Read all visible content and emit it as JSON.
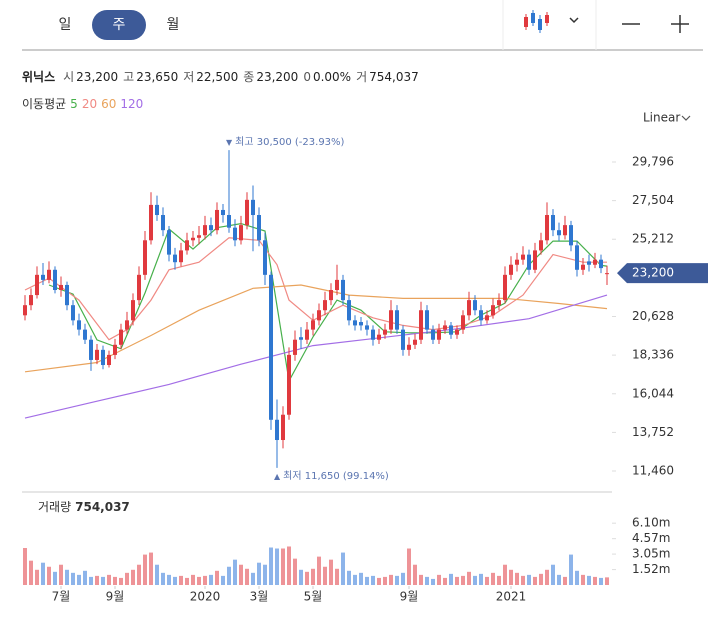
{
  "chart_data": {
    "type": "candlestick",
    "title": "위닉스",
    "tabs": [
      "일",
      "주",
      "월"
    ],
    "selected_tab": 1,
    "header": [
      {
        "label": "시",
        "value": "23,200"
      },
      {
        "label": "고",
        "value": "23,650"
      },
      {
        "label": "저",
        "value": "22,500"
      },
      {
        "label": "종",
        "value": "23,200"
      },
      {
        "label": "0",
        "value": "0.00%"
      },
      {
        "label": "거",
        "value": "754,037"
      }
    ],
    "ma_title": "이동평균",
    "scale_label": "Linear",
    "up_color": "#e0393e",
    "down_color": "#2f77d0",
    "ohlc": [
      [
        20700,
        21900,
        20400,
        21300
      ],
      [
        21300,
        22300,
        21000,
        21900
      ],
      [
        21900,
        23600,
        21700,
        23100
      ],
      [
        23100,
        23800,
        22500,
        22800
      ],
      [
        22800,
        23900,
        22600,
        23400
      ],
      [
        23400,
        23600,
        22000,
        22200
      ],
      [
        22200,
        23000,
        21800,
        22500
      ],
      [
        22500,
        22700,
        21000,
        21300
      ],
      [
        21300,
        21600,
        20100,
        20400
      ],
      [
        20400,
        20800,
        19500,
        19850
      ],
      [
        19850,
        20200,
        19000,
        19250
      ],
      [
        19250,
        19500,
        17400,
        18050
      ],
      [
        18050,
        19000,
        17800,
        18650
      ],
      [
        18650,
        18900,
        17500,
        17750
      ],
      [
        17750,
        18600,
        17600,
        18350
      ],
      [
        18350,
        19300,
        18100,
        18950
      ],
      [
        18950,
        20200,
        18700,
        19850
      ],
      [
        19850,
        20900,
        19600,
        20400
      ],
      [
        20400,
        22000,
        20100,
        21600
      ],
      [
        21600,
        23600,
        21300,
        23100
      ],
      [
        23100,
        25700,
        22800,
        25150
      ],
      [
        25150,
        28000,
        24900,
        27250
      ],
      [
        27250,
        27800,
        26300,
        26650
      ],
      [
        26650,
        27100,
        25400,
        25750
      ],
      [
        25750,
        26000,
        23900,
        24300
      ],
      [
        24300,
        24700,
        23400,
        23850
      ],
      [
        23850,
        25000,
        23600,
        24550
      ],
      [
        24550,
        25600,
        24300,
        25150
      ],
      [
        25150,
        25700,
        24800,
        25300
      ],
      [
        25300,
        26000,
        24900,
        25450
      ],
      [
        25450,
        26600,
        25200,
        26050
      ],
      [
        26050,
        26500,
        25400,
        25750
      ],
      [
        25750,
        27400,
        25500,
        26950
      ],
      [
        26950,
        27300,
        26200,
        26650
      ],
      [
        26650,
        30500,
        25600,
        25900
      ],
      [
        25900,
        26400,
        24800,
        25150
      ],
      [
        25150,
        26600,
        24900,
        26050
      ],
      [
        26050,
        28000,
        25800,
        27550
      ],
      [
        27550,
        28400,
        24500,
        26650
      ],
      [
        26650,
        27100,
        24800,
        25150
      ],
      [
        25150,
        25600,
        22500,
        23100
      ],
      [
        23100,
        23300,
        13900,
        14500
      ],
      [
        14500,
        15700,
        11650,
        13300
      ],
      [
        13300,
        15300,
        12800,
        14800
      ],
      [
        14800,
        18800,
        14500,
        18350
      ],
      [
        18350,
        19800,
        18000,
        19250
      ],
      [
        19400,
        20000,
        18700,
        19250
      ],
      [
        19250,
        20300,
        19000,
        19850
      ],
      [
        19850,
        20800,
        19500,
        20400
      ],
      [
        20400,
        21400,
        20100,
        21000
      ],
      [
        21000,
        22100,
        20700,
        21600
      ],
      [
        21600,
        22600,
        21300,
        22200
      ],
      [
        22200,
        23700,
        21900,
        22800
      ],
      [
        22800,
        23100,
        21300,
        21600
      ],
      [
        21600,
        21900,
        20100,
        20400
      ],
      [
        20400,
        20700,
        19800,
        20100
      ],
      [
        20300,
        20600,
        19800,
        20100
      ],
      [
        20100,
        20400,
        19500,
        19850
      ],
      [
        19850,
        20100,
        18900,
        19250
      ],
      [
        19250,
        19900,
        19000,
        19550
      ],
      [
        19550,
        20200,
        19300,
        19850
      ],
      [
        19850,
        21600,
        19600,
        21000
      ],
      [
        21000,
        21300,
        19600,
        19850
      ],
      [
        19850,
        20100,
        18300,
        18650
      ],
      [
        18650,
        19400,
        18300,
        18950
      ],
      [
        18950,
        19600,
        18700,
        19250
      ],
      [
        19250,
        21500,
        19000,
        21000
      ],
      [
        21000,
        21300,
        19600,
        19850
      ],
      [
        19850,
        20100,
        19000,
        19250
      ],
      [
        19250,
        20200,
        19000,
        19850
      ],
      [
        19850,
        20400,
        19600,
        20100
      ],
      [
        20100,
        20300,
        19300,
        19550
      ],
      [
        19550,
        20100,
        19300,
        19850
      ],
      [
        19850,
        21000,
        19600,
        20700
      ],
      [
        20700,
        22100,
        20400,
        21600
      ],
      [
        21600,
        21900,
        20700,
        21000
      ],
      [
        21000,
        21300,
        20100,
        20400
      ],
      [
        20400,
        21000,
        20200,
        20700
      ],
      [
        20700,
        21700,
        20500,
        21300
      ],
      [
        21300,
        22000,
        21000,
        21600
      ],
      [
        21600,
        23600,
        21400,
        23100
      ],
      [
        23100,
        24200,
        22800,
        23700
      ],
      [
        23700,
        24400,
        23300,
        24000
      ],
      [
        24000,
        24800,
        23700,
        24300
      ],
      [
        24300,
        24600,
        23100,
        23400
      ],
      [
        23400,
        25000,
        23200,
        24550
      ],
      [
        24550,
        25600,
        24300,
        25150
      ],
      [
        25150,
        27400,
        24900,
        26650
      ],
      [
        26650,
        27000,
        25400,
        25750
      ],
      [
        25750,
        26200,
        25100,
        25450
      ],
      [
        25450,
        26600,
        25200,
        26050
      ],
      [
        26050,
        26300,
        24500,
        24850
      ],
      [
        24850,
        25100,
        23000,
        23400
      ],
      [
        23400,
        24100,
        23100,
        23700
      ],
      [
        23900,
        24300,
        23300,
        23700
      ],
      [
        23700,
        24400,
        23500,
        24000
      ],
      [
        24000,
        24300,
        23200,
        23500
      ],
      [
        23200,
        23650,
        22500,
        23200
      ]
    ],
    "xticks": [
      {
        "value": 6,
        "label": "7월"
      },
      {
        "value": 15,
        "label": "9월"
      },
      {
        "value": 30,
        "label": "2020"
      },
      {
        "value": 39,
        "label": "3월"
      },
      {
        "value": 48,
        "label": "5월"
      },
      {
        "value": 64,
        "label": "9월"
      },
      {
        "value": 81,
        "label": "2021"
      }
    ],
    "ylim": [
      10500,
      31000
    ],
    "yticks": [
      {
        "value": 11460,
        "label": "11,460"
      },
      {
        "value": 13752,
        "label": "13,752"
      },
      {
        "value": 16044,
        "label": "16,044"
      },
      {
        "value": 18336,
        "label": "18,336"
      },
      {
        "value": 20628,
        "label": "20,628"
      },
      {
        "value": 25212,
        "label": "25,212"
      },
      {
        "value": 27504,
        "label": "27,504"
      },
      {
        "value": 29796,
        "label": "29,796"
      }
    ],
    "grid": false,
    "moving_averages": [
      {
        "name": "5",
        "color": "#47b04b",
        "x": [
          4,
          8,
          12,
          16,
          20,
          24,
          28,
          32,
          36,
          40,
          44,
          48,
          52,
          56,
          60,
          64,
          68,
          72,
          76,
          80,
          84,
          88,
          92,
          96,
          97
        ],
        "values": [
          22500,
          21960,
          19240,
          18710,
          22020,
          25820,
          24630,
          25900,
          26140,
          25700,
          16810,
          19420,
          21600,
          21000,
          19720,
          19660,
          19660,
          19720,
          20710,
          21420,
          23700,
          25100,
          25100,
          23660,
          23620
        ]
      },
      {
        "name": "20",
        "color": "#f08a84",
        "x": [
          0,
          4,
          9,
          14,
          17,
          21,
          24,
          29,
          34,
          39,
          42,
          44,
          48,
          53,
          58,
          63,
          68,
          73,
          78,
          83,
          88,
          93,
          97
        ],
        "values": [
          22200,
          22900,
          21600,
          19250,
          19850,
          21600,
          23400,
          23850,
          25300,
          25150,
          23700,
          21600,
          20400,
          21300,
          20550,
          20100,
          19850,
          20100,
          20700,
          21900,
          24300,
          23850,
          23850
        ]
      },
      {
        "name": "60",
        "color": "#e9a35c",
        "x": [
          0,
          12,
          21,
          29,
          38,
          46,
          54,
          63,
          71,
          80,
          89,
          97
        ],
        "values": [
          17350,
          17900,
          19500,
          21000,
          22300,
          22500,
          21900,
          21700,
          21700,
          21700,
          21400,
          21100
        ]
      },
      {
        "name": "120",
        "color": "#a36ee6",
        "x": [
          0,
          12,
          24,
          36,
          48,
          60,
          72,
          84,
          97
        ],
        "values": [
          14600,
          15600,
          16600,
          17800,
          18900,
          19400,
          19900,
          20500,
          21900
        ]
      }
    ],
    "annotations": [
      {
        "marker": "▼",
        "text": "최고 30,500 (-23.93%)",
        "index": 34,
        "value": 30500,
        "side": "above"
      },
      {
        "marker": "▲",
        "text": "최저 11,650 (99.14%)",
        "index": 42,
        "value": 11650,
        "side": "below"
      }
    ],
    "last_close_label": "23,200",
    "volume": {
      "title": "거래량",
      "title_value": "754,037",
      "up_color": "#ee9397",
      "down_color": "#8db4ea",
      "ylim": [
        0,
        7400000
      ],
      "yticks": [
        {
          "value": 1520000,
          "label": "1.52m"
        },
        {
          "value": 3050000,
          "label": "3.05m"
        },
        {
          "value": 4570000,
          "label": "4.57m"
        },
        {
          "value": 6100000,
          "label": "6.10m"
        }
      ],
      "values": [
        3650000,
        2400000,
        1500000,
        2200000,
        1800000,
        1300000,
        2000000,
        1500000,
        1200000,
        1000000,
        1400000,
        800000,
        900000,
        800000,
        1000000,
        800000,
        700000,
        1200000,
        1500000,
        2000000,
        3000000,
        3200000,
        2000000,
        1200000,
        1000000,
        800000,
        900000,
        700000,
        1000000,
        800000,
        900000,
        1000000,
        1400000,
        900000,
        1800000,
        2500000,
        2000000,
        1600000,
        1200000,
        2200000,
        2000000,
        3700000,
        3600000,
        3600000,
        3800000,
        2600000,
        1500000,
        1300000,
        1600000,
        2800000,
        1800000,
        2500000,
        1600000,
        3200000,
        1400000,
        1000000,
        1200000,
        800000,
        900000,
        700000,
        800000,
        1000000,
        900000,
        1200000,
        3600000,
        2000000,
        1000000,
        800000,
        600000,
        1000000,
        700000,
        1100000,
        800000,
        900000,
        1300000,
        900000,
        1100000,
        800000,
        1200000,
        900000,
        2000000,
        1500000,
        1200000,
        900000,
        1000000,
        800000,
        1100000,
        1500000,
        2000000,
        1000000,
        800000,
        3000000,
        1400000,
        1000000,
        900000,
        800000,
        700000,
        754037
      ]
    }
  }
}
